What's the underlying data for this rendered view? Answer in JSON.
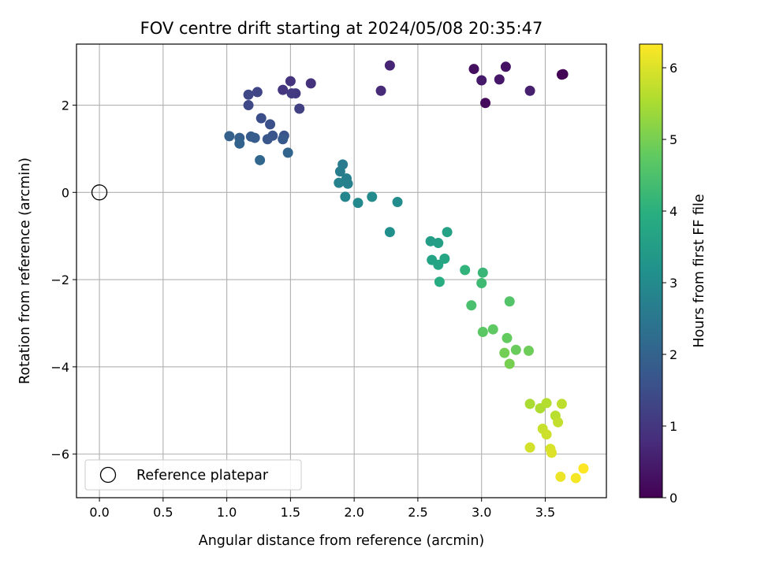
{
  "chart_data": {
    "type": "scatter",
    "title": "FOV centre drift starting at 2024/05/08 20:35:47",
    "xlabel": "Angular distance from reference (arcmin)",
    "ylabel": "Rotation from reference (arcmin)",
    "xlim": [
      -0.18,
      3.98
    ],
    "ylim": [
      -7.0,
      3.4
    ],
    "xticks": [
      0.0,
      0.5,
      1.0,
      1.5,
      2.0,
      2.5,
      3.0,
      3.5
    ],
    "xtick_labels": [
      "0.0",
      "0.5",
      "1.0",
      "1.5",
      "2.0",
      "2.5",
      "3.0",
      "3.5"
    ],
    "yticks": [
      -6,
      -4,
      -2,
      0,
      2
    ],
    "ytick_labels": [
      "−6",
      "−4",
      "−2",
      "0",
      "2"
    ],
    "grid": true,
    "colormap": "viridis",
    "colorbar": {
      "label": "Hours from first FF file",
      "range": [
        0,
        6.33
      ],
      "ticks": [
        0,
        1,
        2,
        3,
        4,
        5,
        6
      ],
      "tick_labels": [
        "0",
        "1",
        "2",
        "3",
        "4",
        "5",
        "6"
      ]
    },
    "legend": {
      "position": "lower-left",
      "entries": [
        "Reference platepar"
      ]
    },
    "reference_point": {
      "x": 0.0,
      "y": 0.0,
      "style": "hollow-circle",
      "color": "#000000"
    },
    "series": [
      {
        "marker": "filled-circle",
        "points": [
          {
            "x": 3.64,
            "y": 2.71,
            "t": 0.0
          },
          {
            "x": 3.63,
            "y": 2.7,
            "t": 0.05
          },
          {
            "x": 3.03,
            "y": 2.05,
            "t": 0.15
          },
          {
            "x": 2.94,
            "y": 2.83,
            "t": 0.25
          },
          {
            "x": 3.19,
            "y": 2.88,
            "t": 0.3
          },
          {
            "x": 3.14,
            "y": 2.59,
            "t": 0.4
          },
          {
            "x": 3.0,
            "y": 2.57,
            "t": 0.45
          },
          {
            "x": 3.38,
            "y": 2.33,
            "t": 0.55
          },
          {
            "x": 2.28,
            "y": 2.91,
            "t": 0.65
          },
          {
            "x": 2.21,
            "y": 2.33,
            "t": 0.75
          },
          {
            "x": 1.66,
            "y": 2.5,
            "t": 0.9
          },
          {
            "x": 1.5,
            "y": 2.55,
            "t": 0.95
          },
          {
            "x": 1.44,
            "y": 2.35,
            "t": 1.0
          },
          {
            "x": 1.54,
            "y": 2.27,
            "t": 1.05
          },
          {
            "x": 1.51,
            "y": 2.27,
            "t": 1.1
          },
          {
            "x": 1.57,
            "y": 1.92,
            "t": 1.2
          },
          {
            "x": 1.24,
            "y": 2.3,
            "t": 1.3
          },
          {
            "x": 1.17,
            "y": 2.24,
            "t": 1.35
          },
          {
            "x": 1.17,
            "y": 2.0,
            "t": 1.4
          },
          {
            "x": 1.27,
            "y": 1.7,
            "t": 1.5
          },
          {
            "x": 1.34,
            "y": 1.56,
            "t": 1.55
          },
          {
            "x": 1.45,
            "y": 1.3,
            "t": 1.6
          },
          {
            "x": 1.36,
            "y": 1.3,
            "t": 1.65
          },
          {
            "x": 1.32,
            "y": 1.22,
            "t": 1.7
          },
          {
            "x": 1.44,
            "y": 1.22,
            "t": 1.75
          },
          {
            "x": 1.19,
            "y": 1.28,
            "t": 1.8
          },
          {
            "x": 1.22,
            "y": 1.25,
            "t": 1.85
          },
          {
            "x": 1.1,
            "y": 1.25,
            "t": 1.9
          },
          {
            "x": 1.02,
            "y": 1.29,
            "t": 1.95
          },
          {
            "x": 1.1,
            "y": 1.12,
            "t": 2.0
          },
          {
            "x": 1.48,
            "y": 0.91,
            "t": 2.05
          },
          {
            "x": 1.26,
            "y": 0.74,
            "t": 2.1
          },
          {
            "x": 1.91,
            "y": 0.64,
            "t": 2.6
          },
          {
            "x": 1.89,
            "y": 0.48,
            "t": 2.65
          },
          {
            "x": 1.94,
            "y": 0.32,
            "t": 2.7
          },
          {
            "x": 1.95,
            "y": 0.2,
            "t": 2.75
          },
          {
            "x": 1.88,
            "y": 0.22,
            "t": 2.8
          },
          {
            "x": 1.93,
            "y": -0.1,
            "t": 2.85
          },
          {
            "x": 2.03,
            "y": -0.24,
            "t": 2.95
          },
          {
            "x": 2.14,
            "y": -0.1,
            "t": 3.0
          },
          {
            "x": 2.34,
            "y": -0.22,
            "t": 3.05
          },
          {
            "x": 2.28,
            "y": -0.91,
            "t": 3.15
          },
          {
            "x": 2.6,
            "y": -1.12,
            "t": 3.5
          },
          {
            "x": 2.66,
            "y": -1.16,
            "t": 3.55
          },
          {
            "x": 2.73,
            "y": -0.91,
            "t": 3.6
          },
          {
            "x": 2.61,
            "y": -1.55,
            "t": 3.65
          },
          {
            "x": 2.66,
            "y": -1.66,
            "t": 3.7
          },
          {
            "x": 2.71,
            "y": -1.52,
            "t": 3.75
          },
          {
            "x": 2.67,
            "y": -2.05,
            "t": 3.9
          },
          {
            "x": 2.87,
            "y": -1.78,
            "t": 4.1
          },
          {
            "x": 3.01,
            "y": -1.84,
            "t": 4.2
          },
          {
            "x": 3.0,
            "y": -2.08,
            "t": 4.3
          },
          {
            "x": 2.92,
            "y": -2.59,
            "t": 4.45
          },
          {
            "x": 3.22,
            "y": -2.5,
            "t": 4.6
          },
          {
            "x": 3.01,
            "y": -3.2,
            "t": 4.7
          },
          {
            "x": 3.09,
            "y": -3.14,
            "t": 4.75
          },
          {
            "x": 3.2,
            "y": -3.34,
            "t": 4.8
          },
          {
            "x": 3.27,
            "y": -3.61,
            "t": 4.85
          },
          {
            "x": 3.37,
            "y": -3.63,
            "t": 4.9
          },
          {
            "x": 3.18,
            "y": -3.68,
            "t": 4.95
          },
          {
            "x": 3.22,
            "y": -3.93,
            "t": 5.0
          },
          {
            "x": 3.38,
            "y": -4.85,
            "t": 5.5
          },
          {
            "x": 3.46,
            "y": -4.95,
            "t": 5.55
          },
          {
            "x": 3.51,
            "y": -4.83,
            "t": 5.6
          },
          {
            "x": 3.58,
            "y": -5.12,
            "t": 5.65
          },
          {
            "x": 3.63,
            "y": -4.85,
            "t": 5.7
          },
          {
            "x": 3.6,
            "y": -5.27,
            "t": 5.75
          },
          {
            "x": 3.48,
            "y": -5.42,
            "t": 5.8
          },
          {
            "x": 3.51,
            "y": -5.55,
            "t": 5.85
          },
          {
            "x": 3.38,
            "y": -5.85,
            "t": 5.9
          },
          {
            "x": 3.54,
            "y": -5.88,
            "t": 5.95
          },
          {
            "x": 3.55,
            "y": -5.97,
            "t": 6.0
          },
          {
            "x": 3.62,
            "y": -6.52,
            "t": 6.15
          },
          {
            "x": 3.74,
            "y": -6.55,
            "t": 6.25
          },
          {
            "x": 3.8,
            "y": -6.33,
            "t": 6.33
          }
        ]
      }
    ]
  }
}
